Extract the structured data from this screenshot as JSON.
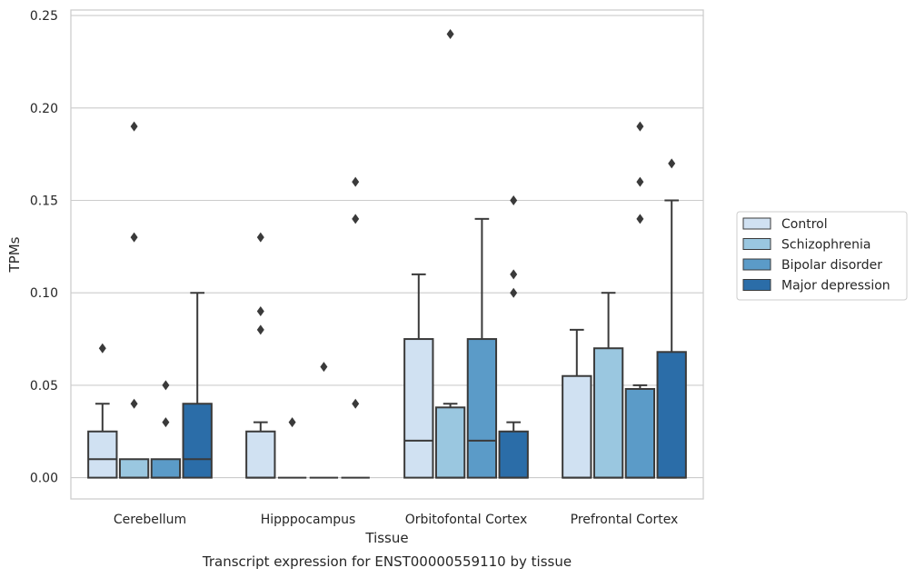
{
  "chart_data": {
    "type": "box",
    "title": "Transcript expression for ENST00000559110 by tissue",
    "xlabel": "Tissue",
    "ylabel": "TPMs",
    "ylim": [
      -0.0115,
      0.253
    ],
    "yticks": [
      "0.00",
      "0.05",
      "0.10",
      "0.15",
      "0.20",
      "0.25"
    ],
    "ytick_values": [
      0,
      0.05,
      0.1,
      0.15,
      0.2,
      0.25
    ],
    "grid": true,
    "legend_placement": "right",
    "categories": [
      "Cerebellum",
      "Hipppocampus",
      "Orbitofontal Cortex",
      "Prefrontal Cortex"
    ],
    "series": [
      {
        "name": "Control",
        "color": "#d0e1f2",
        "boxes": [
          {
            "q1": 0,
            "median": 0.01,
            "q3": 0.025,
            "whislo": 0,
            "whishi": 0.04,
            "fliers": [
              0.07
            ]
          },
          {
            "q1": 0,
            "median": 0,
            "q3": 0.025,
            "whislo": 0,
            "whishi": 0.03,
            "fliers": [
              0.08,
              0.09,
              0.13
            ]
          },
          {
            "q1": 0,
            "median": 0.02,
            "q3": 0.075,
            "whislo": 0,
            "whishi": 0.11,
            "fliers": []
          },
          {
            "q1": 0,
            "median": 0,
            "q3": 0.055,
            "whislo": 0,
            "whishi": 0.08,
            "fliers": []
          }
        ]
      },
      {
        "name": "Schizophrenia",
        "color": "#9ac7e0",
        "boxes": [
          {
            "q1": 0,
            "median": 0,
            "q3": 0.01,
            "whislo": 0,
            "whishi": 0.01,
            "fliers": [
              0.04,
              0.13,
              0.19
            ]
          },
          {
            "q1": 0,
            "median": 0,
            "q3": 0,
            "whislo": 0,
            "whishi": 0,
            "fliers": [
              0.03
            ]
          },
          {
            "q1": 0,
            "median": 0,
            "q3": 0.038,
            "whislo": 0,
            "whishi": 0.04,
            "fliers": [
              0.24
            ]
          },
          {
            "q1": 0,
            "median": 0,
            "q3": 0.07,
            "whislo": 0,
            "whishi": 0.1,
            "fliers": []
          }
        ]
      },
      {
        "name": "Bipolar disorder",
        "color": "#5b9bc8",
        "boxes": [
          {
            "q1": 0,
            "median": 0,
            "q3": 0.01,
            "whislo": 0,
            "whishi": 0.01,
            "fliers": [
              0.03,
              0.05
            ]
          },
          {
            "q1": 0,
            "median": 0,
            "q3": 0,
            "whislo": 0,
            "whishi": 0,
            "fliers": [
              0.06
            ]
          },
          {
            "q1": 0,
            "median": 0.02,
            "q3": 0.075,
            "whislo": 0,
            "whishi": 0.14,
            "fliers": []
          },
          {
            "q1": 0,
            "median": 0,
            "q3": 0.048,
            "whislo": 0,
            "whishi": 0.05,
            "fliers": [
              0.14,
              0.16,
              0.19
            ]
          }
        ]
      },
      {
        "name": "Major depression",
        "color": "#2b6da8",
        "boxes": [
          {
            "q1": 0,
            "median": 0.01,
            "q3": 0.04,
            "whislo": 0,
            "whishi": 0.1,
            "fliers": []
          },
          {
            "q1": 0,
            "median": 0,
            "q3": 0,
            "whislo": 0,
            "whishi": 0,
            "fliers": [
              0.04,
              0.14,
              0.16
            ]
          },
          {
            "q1": 0,
            "median": 0,
            "q3": 0.025,
            "whislo": 0,
            "whishi": 0.03,
            "fliers": [
              0.1,
              0.11,
              0.15
            ]
          },
          {
            "q1": 0,
            "median": 0,
            "q3": 0.068,
            "whislo": 0,
            "whishi": 0.15,
            "fliers": [
              0.17
            ]
          }
        ]
      }
    ]
  }
}
